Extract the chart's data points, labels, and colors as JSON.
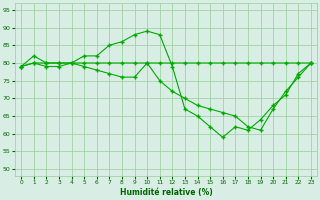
{
  "x": [
    0,
    1,
    2,
    3,
    4,
    5,
    6,
    7,
    8,
    9,
    10,
    11,
    12,
    13,
    14,
    15,
    16,
    17,
    18,
    19,
    20,
    21,
    22,
    23
  ],
  "line1": [
    79,
    82,
    80,
    80,
    80,
    82,
    82,
    85,
    86,
    88,
    89,
    88,
    79,
    67,
    65,
    62,
    59,
    62,
    61,
    64,
    68,
    71,
    77,
    80
  ],
  "line2": [
    79,
    80,
    79,
    79,
    80,
    79,
    78,
    77,
    76,
    76,
    80,
    75,
    72,
    70,
    68,
    67,
    66,
    65,
    62,
    61,
    67,
    72,
    76,
    80
  ],
  "line3": [
    79,
    80,
    80,
    80,
    80,
    80,
    80,
    80,
    80,
    80,
    80,
    80,
    80,
    80,
    80,
    80,
    80,
    80,
    80,
    80,
    80,
    80,
    80,
    80
  ],
  "line_color": "#00aa00",
  "bg_color": "#d8eee4",
  "grid_color": "#99cc99",
  "xlabel": "Humidité relative (%)",
  "xlabel_color": "#006600",
  "tick_color": "#006600",
  "ylim": [
    48,
    97
  ],
  "xlim": [
    -0.5,
    23.5
  ],
  "yticks": [
    50,
    55,
    60,
    65,
    70,
    75,
    80,
    85,
    90,
    95
  ],
  "xticks": [
    0,
    1,
    2,
    3,
    4,
    5,
    6,
    7,
    8,
    9,
    10,
    11,
    12,
    13,
    14,
    15,
    16,
    17,
    18,
    19,
    20,
    21,
    22,
    23
  ]
}
